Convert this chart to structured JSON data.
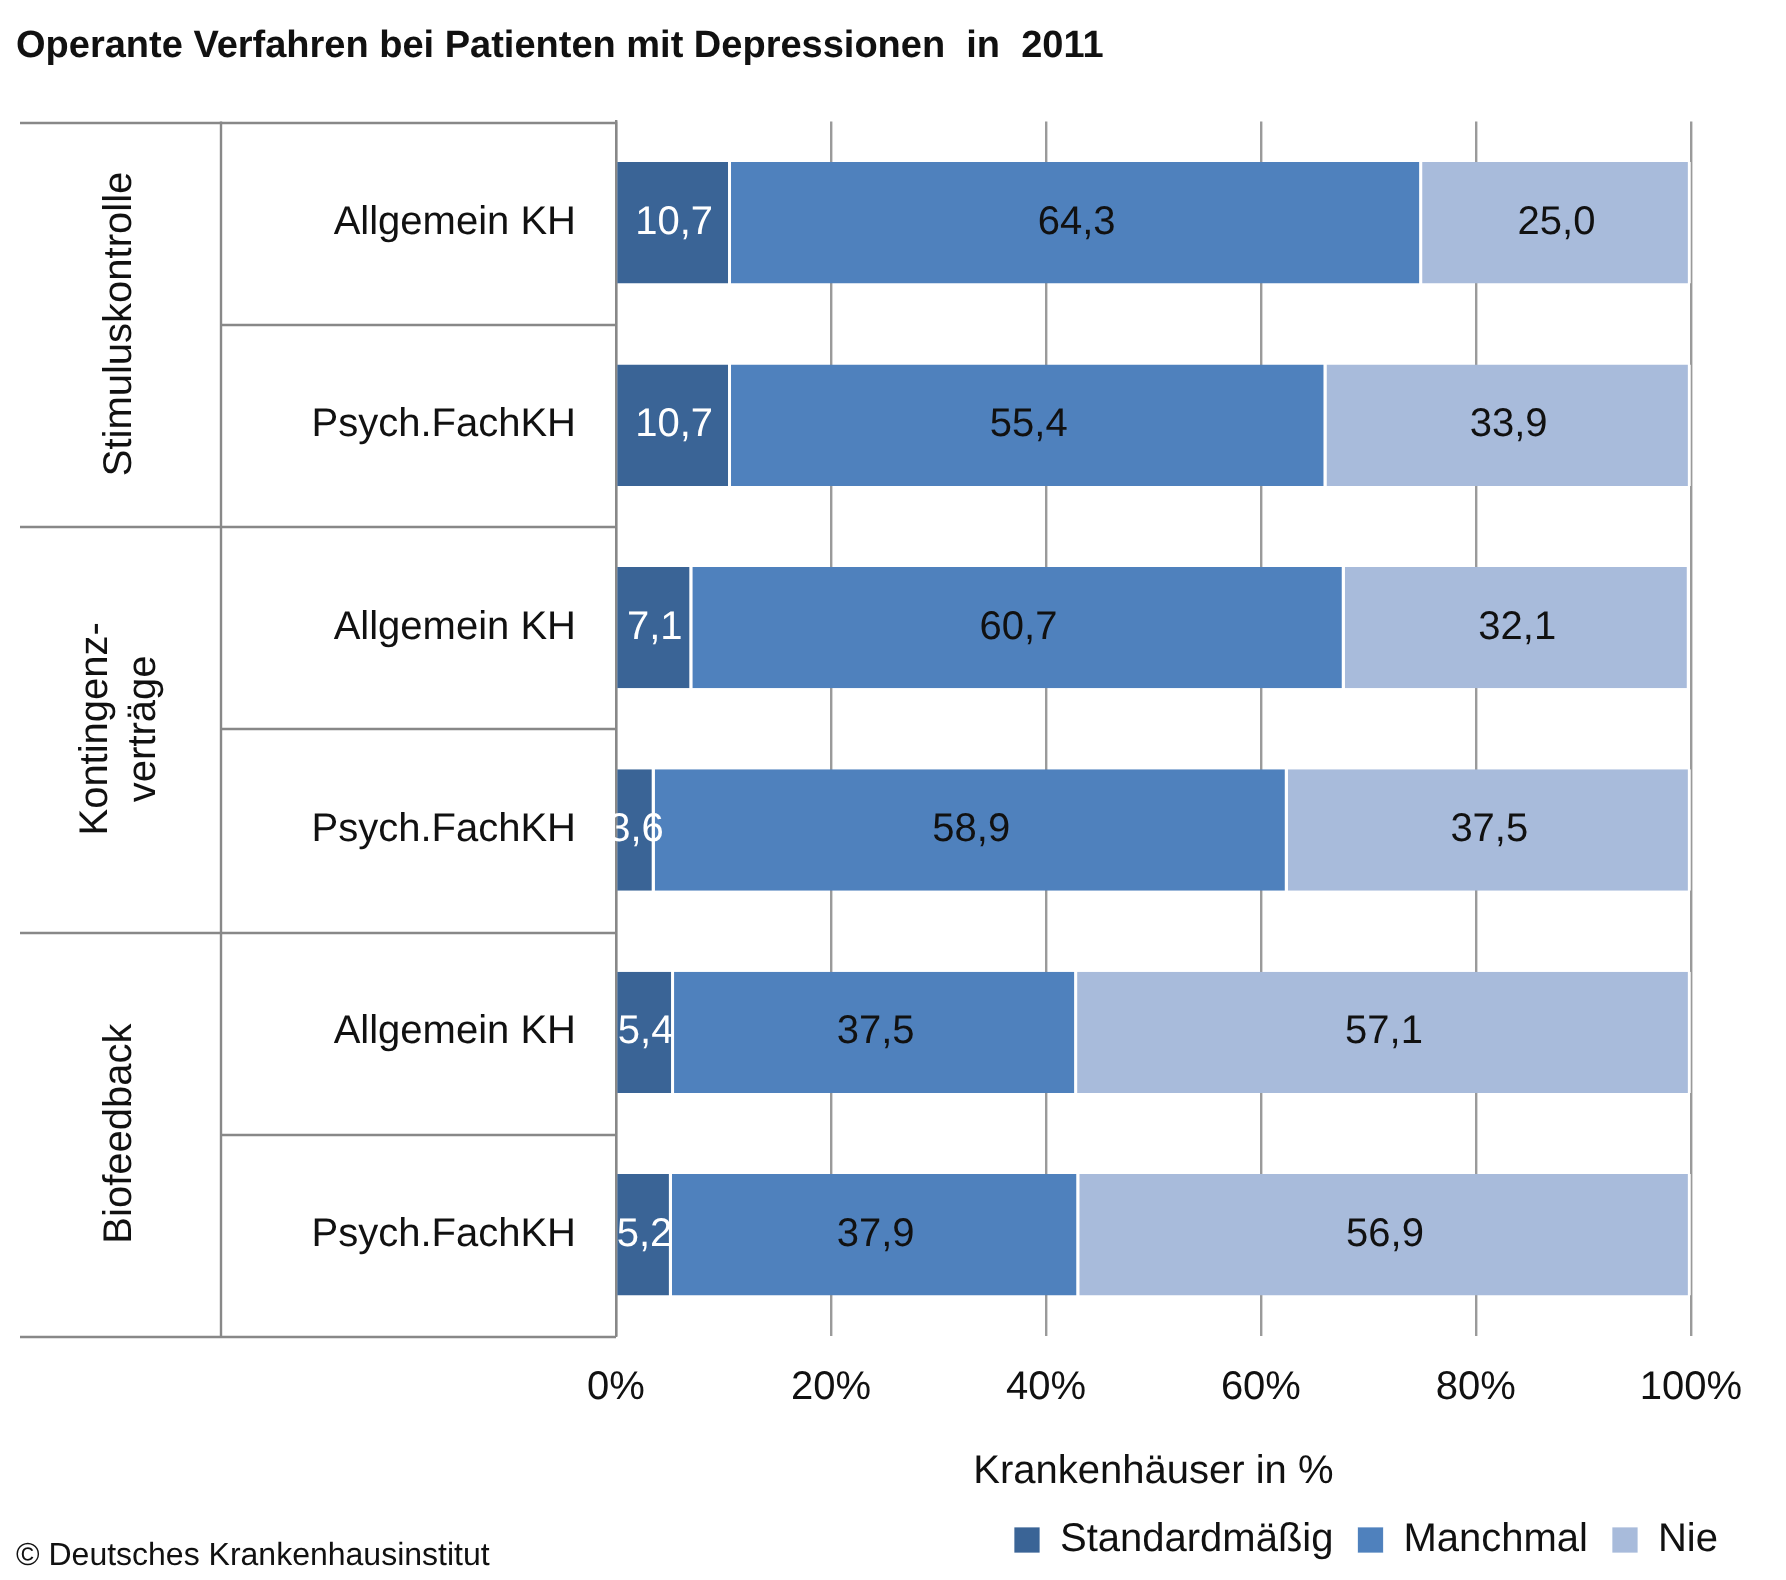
{
  "chart_data": {
    "type": "bar",
    "orientation": "horizontal",
    "stacked": true,
    "title": "Operante Verfahren bei Patienten mit Depressionen  in  2011",
    "xlabel": "Krankenhäuser in %",
    "categories": [
      "Allgemein KH",
      "Psych.FachKH",
      "Allgemein KH",
      "Psych.FachKH",
      "Allgemein KH",
      "Psych.FachKH"
    ],
    "series": [
      {
        "name": "Standardmäßig",
        "color": "#3a6496",
        "values": [
          10.7,
          10.7,
          7.1,
          3.6,
          5.4,
          5.2
        ],
        "value_labels": [
          "10,7",
          "10,7",
          "7,1",
          "3,6",
          "5,4",
          "5,2"
        ]
      },
      {
        "name": "Manchmal",
        "color": "#4f81bd",
        "values": [
          64.3,
          55.4,
          60.7,
          58.9,
          37.5,
          37.9
        ],
        "value_labels": [
          "64,3",
          "55,4",
          "60,7",
          "58,9",
          "37,5",
          "37,9"
        ]
      },
      {
        "name": "Nie",
        "color": "#a8bbdb",
        "values": [
          25.0,
          33.9,
          32.1,
          37.5,
          57.1,
          56.9
        ],
        "value_labels": [
          "25,0",
          "33,9",
          "32,1",
          "37,5",
          "57,1",
          "56,9"
        ]
      }
    ],
    "xlim": [
      0,
      100
    ],
    "xticks": [
      {
        "value": 0,
        "label": "0%"
      },
      {
        "value": 20,
        "label": "20%"
      },
      {
        "value": 40,
        "label": "40%"
      },
      {
        "value": 60,
        "label": "60%"
      },
      {
        "value": 80,
        "label": "80%"
      },
      {
        "value": 100,
        "label": "100%"
      }
    ],
    "grid": "x",
    "legend": "bottom",
    "annotations": [
      "Stimuluskontrolle",
      "Kontingenz-verträge",
      "Biofeedback",
      "© Deutsches Krankenhausinstitut"
    ]
  }
}
